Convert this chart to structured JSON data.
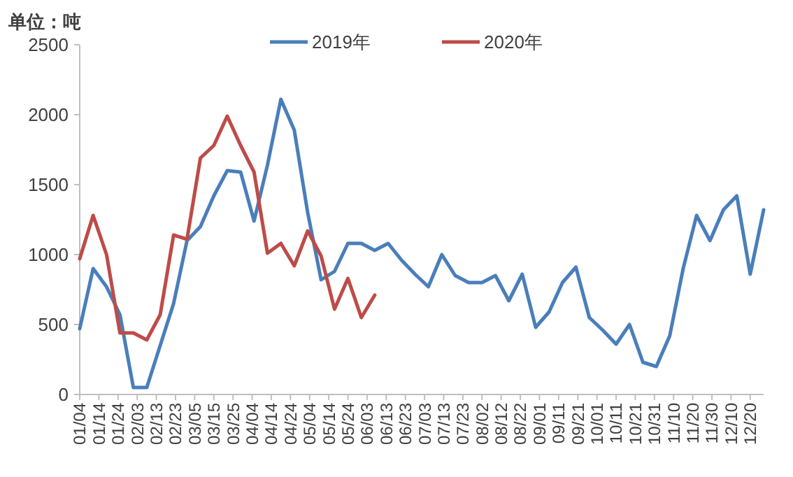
{
  "chart_data": {
    "type": "line",
    "ylabel": "单位：吨",
    "legend": "top",
    "ylim": [
      0,
      2500
    ],
    "yticks": [
      0,
      500,
      1000,
      1500,
      2000,
      2500
    ],
    "xlim": [
      "--01-04",
      "--12-27"
    ],
    "xticks": [
      {
        "value": "--01-04",
        "label": "01/04"
      },
      {
        "value": "--01-14",
        "label": "01/14"
      },
      {
        "value": "--01-24",
        "label": "01/24"
      },
      {
        "value": "--02-03",
        "label": "02/03"
      },
      {
        "value": "--02-13",
        "label": "02/13"
      },
      {
        "value": "--02-23",
        "label": "02/23"
      },
      {
        "value": "--03-05",
        "label": "03/05"
      },
      {
        "value": "--03-15",
        "label": "03/15"
      },
      {
        "value": "--03-25",
        "label": "03/25"
      },
      {
        "value": "--04-04",
        "label": "04/04"
      },
      {
        "value": "--04-14",
        "label": "04/14"
      },
      {
        "value": "--04-24",
        "label": "04/24"
      },
      {
        "value": "--05-04",
        "label": "05/04"
      },
      {
        "value": "--05-14",
        "label": "05/14"
      },
      {
        "value": "--05-24",
        "label": "05/24"
      },
      {
        "value": "--06-03",
        "label": "06/03"
      },
      {
        "value": "--06-13",
        "label": "06/13"
      },
      {
        "value": "--06-23",
        "label": "06/23"
      },
      {
        "value": "--07-03",
        "label": "07/03"
      },
      {
        "value": "--07-13",
        "label": "07/13"
      },
      {
        "value": "--07-23",
        "label": "07/23"
      },
      {
        "value": "--08-02",
        "label": "08/02"
      },
      {
        "value": "--08-12",
        "label": "08/12"
      },
      {
        "value": "--08-22",
        "label": "08/22"
      },
      {
        "value": "--09-01",
        "label": "09/01"
      },
      {
        "value": "--09-11",
        "label": "09/11"
      },
      {
        "value": "--09-21",
        "label": "09/21"
      },
      {
        "value": "--10-01",
        "label": "10/01"
      },
      {
        "value": "--10-11",
        "label": "10/11"
      },
      {
        "value": "--10-21",
        "label": "10/21"
      },
      {
        "value": "--10-31",
        "label": "10/31"
      },
      {
        "value": "--11-10",
        "label": "11/10"
      },
      {
        "value": "--11-20",
        "label": "11/20"
      },
      {
        "value": "--11-30",
        "label": "11/30"
      },
      {
        "value": "--12-10",
        "label": "12/10"
      },
      {
        "value": "--12-20",
        "label": "12/20"
      }
    ],
    "x": [
      "--01-04",
      "--01-11",
      "--01-18",
      "--01-25",
      "--02-01",
      "--02-08",
      "--02-15",
      "--02-22",
      "--03-01",
      "--03-08",
      "--03-15",
      "--03-22",
      "--03-29",
      "--04-05",
      "--04-12",
      "--04-19",
      "--04-26",
      "--05-03",
      "--05-10",
      "--05-17",
      "--05-24",
      "--05-31",
      "--06-07",
      "--06-14",
      "--06-21",
      "--06-28",
      "--07-05",
      "--07-12",
      "--07-19",
      "--07-26",
      "--08-02",
      "--08-09",
      "--08-16",
      "--08-23",
      "--08-30",
      "--09-06",
      "--09-13",
      "--09-20",
      "--09-27",
      "--10-04",
      "--10-11",
      "--10-18",
      "--10-25",
      "--11-01",
      "--11-08",
      "--11-15",
      "--11-22",
      "--11-29",
      "--12-06",
      "--12-13",
      "--12-20",
      "--12-27"
    ],
    "series": [
      {
        "name": "2019年",
        "color": "#4a7ebb",
        "values": [
          470,
          900,
          770,
          570,
          50,
          50,
          350,
          650,
          1100,
          1200,
          1420,
          1600,
          1590,
          1240,
          1640,
          2110,
          1890,
          1300,
          820,
          880,
          1080,
          1080,
          1030,
          1080,
          960,
          860,
          770,
          1000,
          850,
          800,
          800,
          850,
          670,
          860,
          480,
          590,
          800,
          910,
          550,
          460,
          360,
          500,
          230,
          200,
          420,
          900,
          1280,
          1100,
          1320,
          1420,
          860,
          1320
        ]
      },
      {
        "name": "2020年",
        "color": "#be4b48",
        "x": [
          "--01-04",
          "--01-11",
          "--01-18",
          "--01-25",
          "--02-01",
          "--02-08",
          "--02-15",
          "--02-22",
          "--03-01",
          "--03-08",
          "--03-15",
          "--03-22",
          "--03-29",
          "--04-05",
          "--04-12",
          "--04-19",
          "--04-26",
          "--05-03",
          "--05-10",
          "--05-17",
          "--05-24",
          "--05-31",
          "--06-07"
        ],
        "values": [
          970,
          1280,
          1000,
          440,
          440,
          390,
          570,
          1140,
          1110,
          1690,
          1780,
          1990,
          1780,
          1590,
          1010,
          1080,
          920,
          1170,
          990,
          610,
          830,
          550,
          710
        ]
      }
    ]
  }
}
